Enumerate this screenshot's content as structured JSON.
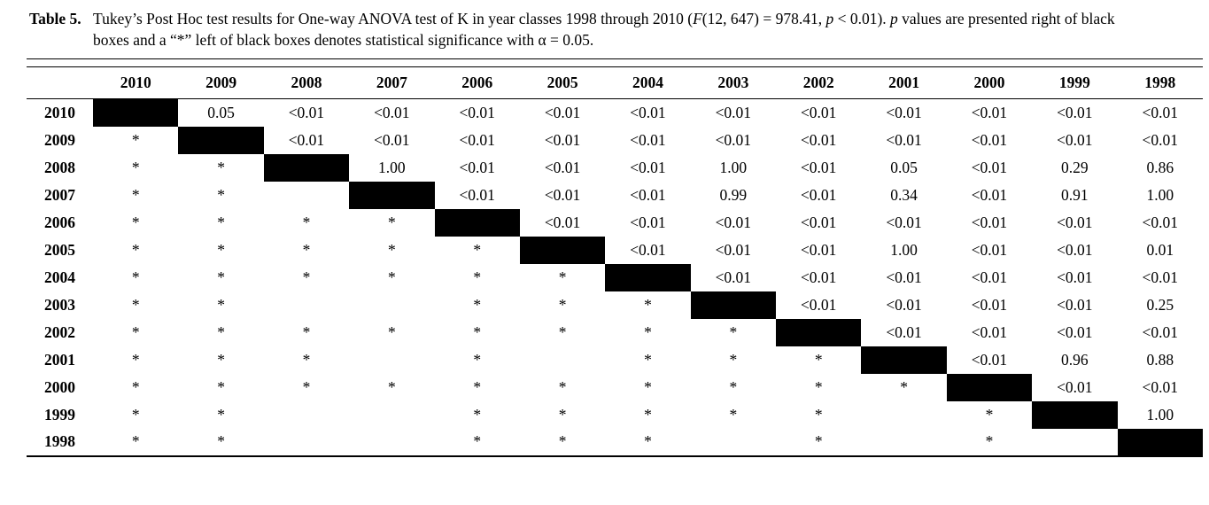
{
  "page": {
    "background": "#ffffff",
    "text_color": "#000000",
    "box_color": "#000000"
  },
  "caption": {
    "label": "Table 5.",
    "line1_segments": [
      {
        "text": "Tukey’s Post Hoc test results for One-way ANOVA test of K in year classes 1998 through 2010 ("
      },
      {
        "text": "F",
        "italic": true
      },
      {
        "text": "(12, 647) = 978.41, "
      },
      {
        "text": "p",
        "italic": true
      },
      {
        "text": " < 0.01). "
      },
      {
        "text": "p",
        "italic": true
      },
      {
        "text": " values are presented right of black"
      }
    ],
    "line2_segments": [
      {
        "text": "boxes and a “*” left of black boxes denotes statistical significance with α = 0.05."
      }
    ]
  },
  "table": {
    "box_token": "■",
    "significance_token": "*",
    "corner_label": "",
    "columns": [
      "2010",
      "2009",
      "2008",
      "2007",
      "2006",
      "2005",
      "2004",
      "2003",
      "2002",
      "2001",
      "2000",
      "1999",
      "1998"
    ],
    "rows": [
      {
        "label": "2010",
        "cells": [
          "■",
          "0.05",
          "<0.01",
          "<0.01",
          "<0.01",
          "<0.01",
          "<0.01",
          "<0.01",
          "<0.01",
          "<0.01",
          "<0.01",
          "<0.01",
          "<0.01"
        ]
      },
      {
        "label": "2009",
        "cells": [
          "*",
          "■",
          "<0.01",
          "<0.01",
          "<0.01",
          "<0.01",
          "<0.01",
          "<0.01",
          "<0.01",
          "<0.01",
          "<0.01",
          "<0.01",
          "<0.01"
        ]
      },
      {
        "label": "2008",
        "cells": [
          "*",
          "*",
          "■",
          "1.00",
          "<0.01",
          "<0.01",
          "<0.01",
          "1.00",
          "<0.01",
          "0.05",
          "<0.01",
          "0.29",
          "0.86"
        ]
      },
      {
        "label": "2007",
        "cells": [
          "*",
          "*",
          "",
          "■",
          "<0.01",
          "<0.01",
          "<0.01",
          "0.99",
          "<0.01",
          "0.34",
          "<0.01",
          "0.91",
          "1.00"
        ]
      },
      {
        "label": "2006",
        "cells": [
          "*",
          "*",
          "*",
          "*",
          "■",
          "<0.01",
          "<0.01",
          "<0.01",
          "<0.01",
          "<0.01",
          "<0.01",
          "<0.01",
          "<0.01"
        ]
      },
      {
        "label": "2005",
        "cells": [
          "*",
          "*",
          "*",
          "*",
          "*",
          "■",
          "<0.01",
          "<0.01",
          "<0.01",
          "1.00",
          "<0.01",
          "<0.01",
          "0.01"
        ]
      },
      {
        "label": "2004",
        "cells": [
          "*",
          "*",
          "*",
          "*",
          "*",
          "*",
          "■",
          "<0.01",
          "<0.01",
          "<0.01",
          "<0.01",
          "<0.01",
          "<0.01"
        ]
      },
      {
        "label": "2003",
        "cells": [
          "*",
          "*",
          "",
          "",
          "*",
          "*",
          "*",
          "■",
          "<0.01",
          "<0.01",
          "<0.01",
          "<0.01",
          "0.25"
        ]
      },
      {
        "label": "2002",
        "cells": [
          "*",
          "*",
          "*",
          "*",
          "*",
          "*",
          "*",
          "*",
          "■",
          "<0.01",
          "<0.01",
          "<0.01",
          "<0.01"
        ]
      },
      {
        "label": "2001",
        "cells": [
          "*",
          "*",
          "*",
          "",
          "*",
          "",
          "*",
          "*",
          "*",
          "■",
          "<0.01",
          "0.96",
          "0.88"
        ]
      },
      {
        "label": "2000",
        "cells": [
          "*",
          "*",
          "*",
          "*",
          "*",
          "*",
          "*",
          "*",
          "*",
          "*",
          "■",
          "<0.01",
          "<0.01"
        ]
      },
      {
        "label": "1999",
        "cells": [
          "*",
          "*",
          "",
          "",
          "*",
          "*",
          "*",
          "*",
          "*",
          "",
          "*",
          "■",
          "1.00"
        ]
      },
      {
        "label": "1998",
        "cells": [
          "*",
          "*",
          "",
          "",
          "*",
          "*",
          "*",
          "",
          "*",
          "",
          "*",
          "",
          "■"
        ]
      }
    ]
  }
}
